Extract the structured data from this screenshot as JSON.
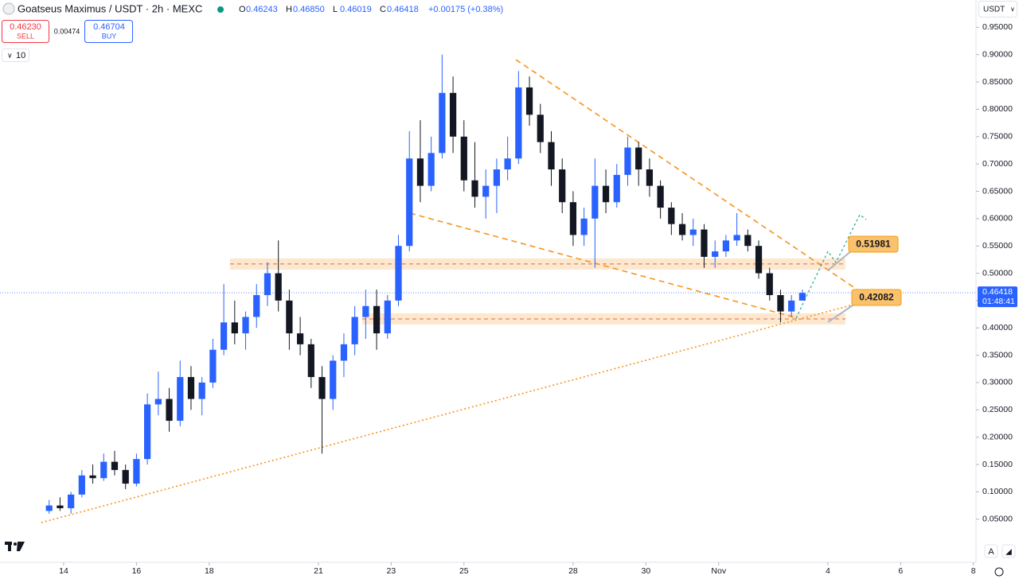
{
  "header": {
    "title": "Goatseus Maximus / USDT · 2h · MEXC",
    "ohlc": [
      {
        "key": "O",
        "value": "0.46243"
      },
      {
        "key": "H",
        "value": "0.46850"
      },
      {
        "key": "L",
        "value": "0.46019"
      },
      {
        "key": "C",
        "value": "0.46418"
      }
    ],
    "change": "+0.00175 (+0.38%)",
    "sell_price": "0.46230",
    "sell_label": "SELL",
    "spread": "0.00474",
    "buy_price": "0.46704",
    "buy_label": "BUY",
    "interval_count": "10",
    "currency": "USDT",
    "auto_button": "A"
  },
  "chart_data": {
    "type": "candlestick",
    "x": [
      13.6,
      13.9,
      14.2,
      14.5,
      14.8,
      15.1,
      15.4,
      15.7,
      16.0,
      16.3,
      16.6,
      16.9,
      17.2,
      17.5,
      17.8,
      18.1,
      18.4,
      18.7,
      19.0,
      19.3,
      19.6,
      19.9,
      20.2,
      20.5,
      20.8,
      21.1,
      21.4,
      21.7,
      22.0,
      22.3,
      22.6,
      22.9,
      23.2,
      23.5,
      23.8,
      24.1,
      24.4,
      24.7,
      25.0,
      25.3,
      25.6,
      25.9,
      26.2,
      26.5,
      26.8,
      27.1,
      27.4,
      27.7,
      28.0,
      28.3,
      28.6,
      28.9,
      29.2,
      29.5,
      29.8,
      30.1,
      30.4,
      30.7,
      31.0,
      31.3,
      31.6,
      31.9,
      32.2,
      32.5,
      32.8,
      33.1,
      33.4,
      33.7,
      34.0,
      34.3
    ],
    "open": [
      0.065,
      0.075,
      0.07,
      0.095,
      0.13,
      0.125,
      0.155,
      0.14,
      0.115,
      0.16,
      0.26,
      0.27,
      0.23,
      0.31,
      0.27,
      0.3,
      0.36,
      0.41,
      0.39,
      0.42,
      0.46,
      0.5,
      0.45,
      0.39,
      0.37,
      0.31,
      0.27,
      0.34,
      0.37,
      0.42,
      0.44,
      0.39,
      0.45,
      0.55,
      0.71,
      0.66,
      0.72,
      0.83,
      0.75,
      0.67,
      0.64,
      0.66,
      0.69,
      0.71,
      0.84,
      0.79,
      0.74,
      0.69,
      0.63,
      0.57,
      0.6,
      0.66,
      0.63,
      0.68,
      0.73,
      0.69,
      0.66,
      0.62,
      0.59,
      0.57,
      0.58,
      0.53,
      0.54,
      0.56,
      0.57,
      0.55,
      0.5,
      0.46,
      0.43,
      0.45
    ],
    "high": [
      0.085,
      0.09,
      0.1,
      0.14,
      0.15,
      0.17,
      0.175,
      0.15,
      0.17,
      0.28,
      0.32,
      0.29,
      0.34,
      0.33,
      0.31,
      0.38,
      0.48,
      0.45,
      0.43,
      0.48,
      0.52,
      0.56,
      0.47,
      0.42,
      0.38,
      0.33,
      0.35,
      0.39,
      0.44,
      0.47,
      0.47,
      0.46,
      0.57,
      0.76,
      0.78,
      0.75,
      0.9,
      0.86,
      0.78,
      0.74,
      0.69,
      0.71,
      0.75,
      0.87,
      0.86,
      0.81,
      0.76,
      0.71,
      0.65,
      0.62,
      0.71,
      0.69,
      0.7,
      0.75,
      0.74,
      0.71,
      0.67,
      0.63,
      0.61,
      0.6,
      0.59,
      0.56,
      0.57,
      0.61,
      0.58,
      0.56,
      0.51,
      0.47,
      0.46,
      0.47
    ],
    "low": [
      0.06,
      0.065,
      0.06,
      0.09,
      0.115,
      0.12,
      0.13,
      0.105,
      0.11,
      0.15,
      0.24,
      0.21,
      0.22,
      0.25,
      0.24,
      0.29,
      0.35,
      0.37,
      0.36,
      0.4,
      0.44,
      0.43,
      0.36,
      0.35,
      0.29,
      0.17,
      0.25,
      0.31,
      0.35,
      0.38,
      0.36,
      0.38,
      0.44,
      0.54,
      0.63,
      0.65,
      0.71,
      0.72,
      0.65,
      0.62,
      0.6,
      0.61,
      0.67,
      0.7,
      0.77,
      0.72,
      0.66,
      0.61,
      0.55,
      0.55,
      0.51,
      0.61,
      0.62,
      0.66,
      0.66,
      0.64,
      0.6,
      0.57,
      0.56,
      0.55,
      0.51,
      0.51,
      0.53,
      0.55,
      0.54,
      0.49,
      0.45,
      0.41,
      0.42,
      0.45
    ],
    "close": [
      0.075,
      0.07,
      0.095,
      0.13,
      0.125,
      0.155,
      0.14,
      0.115,
      0.16,
      0.26,
      0.27,
      0.23,
      0.31,
      0.27,
      0.3,
      0.36,
      0.41,
      0.39,
      0.42,
      0.46,
      0.5,
      0.45,
      0.39,
      0.37,
      0.31,
      0.27,
      0.34,
      0.37,
      0.42,
      0.44,
      0.39,
      0.45,
      0.55,
      0.71,
      0.66,
      0.72,
      0.83,
      0.75,
      0.67,
      0.64,
      0.66,
      0.69,
      0.71,
      0.84,
      0.79,
      0.74,
      0.69,
      0.63,
      0.57,
      0.6,
      0.66,
      0.63,
      0.68,
      0.73,
      0.69,
      0.66,
      0.62,
      0.59,
      0.57,
      0.58,
      0.53,
      0.54,
      0.56,
      0.57,
      0.55,
      0.5,
      0.46,
      0.43,
      0.45,
      0.464
    ],
    "up_color": "#2962ff",
    "down_color": "#131722",
    "xlim": [
      12.25,
      39.05
    ],
    "xticks": [
      14,
      16,
      18,
      21,
      23,
      25,
      28,
      30,
      {
        "value": 32,
        "label": "Nov"
      },
      {
        "value": 35,
        "label": "4"
      },
      {
        "value": 37,
        "label": "6"
      },
      {
        "value": 39,
        "label": "8"
      }
    ],
    "ylim": [
      -0.029,
      1.0
    ],
    "yticks": [
      {
        "value": 0.05,
        "label": "0.05000"
      },
      {
        "value": 0.1,
        "label": "0.10000"
      },
      {
        "value": 0.15,
        "label": "0.15000"
      },
      {
        "value": 0.2,
        "label": "0.20000"
      },
      {
        "value": 0.25,
        "label": "0.25000"
      },
      {
        "value": 0.3,
        "label": "0.30000"
      },
      {
        "value": 0.35,
        "label": "0.35000"
      },
      {
        "value": 0.4,
        "label": "0.40000"
      },
      {
        "value": 0.45,
        "label": "0.45000"
      },
      {
        "value": 0.5,
        "label": "0.50000"
      },
      {
        "value": 0.55,
        "label": "0.55000"
      },
      {
        "value": 0.6,
        "label": "0.60000"
      },
      {
        "value": 0.65,
        "label": "0.65000"
      },
      {
        "value": 0.7,
        "label": "0.70000"
      },
      {
        "value": 0.75,
        "label": "0.75000"
      },
      {
        "value": 0.8,
        "label": "0.80000"
      },
      {
        "value": 0.85,
        "label": "0.85000"
      },
      {
        "value": 0.9,
        "label": "0.90000"
      },
      {
        "value": 0.95,
        "label": "0.95000"
      }
    ],
    "last_price": 0.46418,
    "countdown": "01:48:41",
    "levels": [
      0.51981,
      0.42082
    ]
  }
}
